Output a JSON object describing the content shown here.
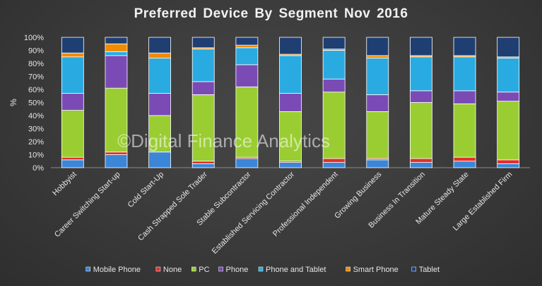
{
  "chart_data": {
    "type": "bar",
    "stacked": true,
    "title": "Preferred Device By Segment Nov 2016",
    "ylabel": "%",
    "xlabel": "",
    "ylim": [
      0,
      100
    ],
    "yticks": [
      "0%",
      "10%",
      "20%",
      "30%",
      "40%",
      "50%",
      "60%",
      "70%",
      "80%",
      "90%",
      "100%"
    ],
    "grid": false,
    "legend_position": "bottom",
    "categories": [
      "Hobbyist",
      "Career Switching Start-up",
      "Cold Start-Up",
      "Cash Strapped Sole Trader",
      "Stable Subcontractor",
      "Established Servicing Contractor",
      "Professional Independent",
      "Growing Business",
      "Business In Transition",
      "Mature Steady State",
      "Large Established Firm"
    ],
    "series": [
      {
        "name": "Mobile Phone",
        "color": "#3b86d6",
        "values": [
          6,
          10,
          12,
          3,
          7,
          4,
          4,
          6,
          4,
          5,
          3
        ]
      },
      {
        "name": "None",
        "color": "#e0302b",
        "values": [
          2,
          2,
          0,
          2,
          1,
          1,
          3,
          1,
          3,
          3,
          3
        ]
      },
      {
        "name": "PC",
        "color": "#9acd32",
        "values": [
          36,
          49,
          28,
          51,
          54,
          38,
          51,
          36,
          43,
          41,
          45
        ]
      },
      {
        "name": "Phone",
        "color": "#7b4bb5",
        "values": [
          13,
          25,
          17,
          10,
          17,
          14,
          10,
          13,
          9,
          10,
          7
        ]
      },
      {
        "name": "Phone and Tablet",
        "color": "#29abe2",
        "values": [
          28,
          3,
          27,
          25,
          13,
          29,
          22,
          28,
          26,
          26,
          26
        ]
      },
      {
        "name": "Smart Phone",
        "color": "#f08c00",
        "values": [
          3,
          6,
          4,
          1,
          2,
          1,
          1,
          2,
          1,
          1,
          1
        ]
      },
      {
        "name": "Tablet",
        "color": "#1f3f73",
        "values": [
          12,
          5,
          12,
          8,
          6,
          13,
          9,
          14,
          14,
          14,
          15
        ]
      }
    ]
  },
  "watermark": "©Digital Finance Analytics"
}
